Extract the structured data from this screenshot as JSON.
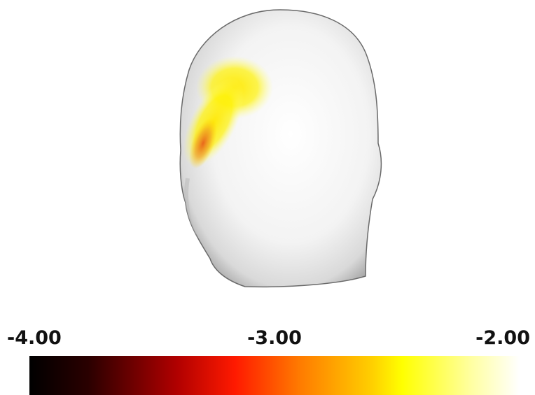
{
  "colorbar": {
    "range": [
      -4,
      -2
    ],
    "ticks": [
      {
        "value": -4,
        "label": "-4.00"
      },
      {
        "value": -3,
        "label": "-3.00"
      },
      {
        "value": -2,
        "label": "-2.00"
      }
    ]
  }
}
